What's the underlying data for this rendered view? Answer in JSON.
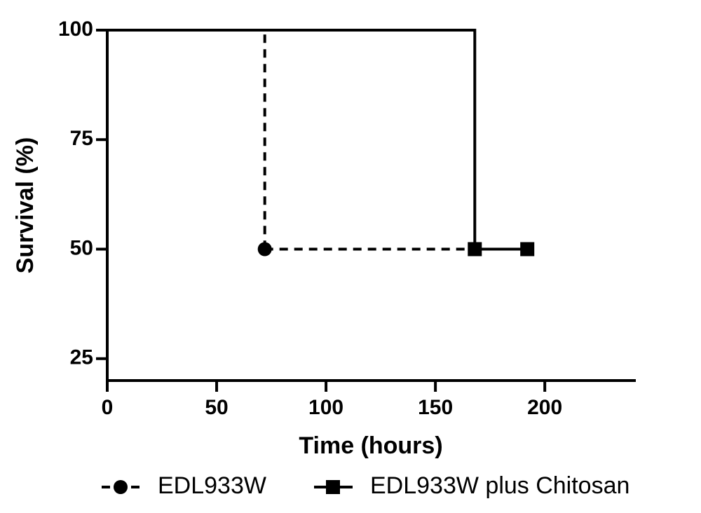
{
  "chart_data": {
    "type": "step",
    "x_label": "Time (hours)",
    "y_label": "Survival (%)",
    "xlim": [
      0,
      240
    ],
    "xticks": [
      0,
      50,
      100,
      150,
      200
    ],
    "ylim": [
      20,
      100
    ],
    "yticks": [
      25,
      50,
      75,
      100
    ],
    "series": [
      {
        "name": "EDL933W",
        "color": "#000000",
        "line_style": "dashed",
        "marker": "circle",
        "x": [
          0,
          72,
          168
        ],
        "values": [
          100,
          50,
          50
        ]
      },
      {
        "name": "EDL933W plus Chitosan",
        "color": "#000000",
        "line_style": "solid",
        "marker": "square",
        "x": [
          0,
          168,
          192
        ],
        "values": [
          100,
          50,
          50
        ]
      }
    ]
  }
}
